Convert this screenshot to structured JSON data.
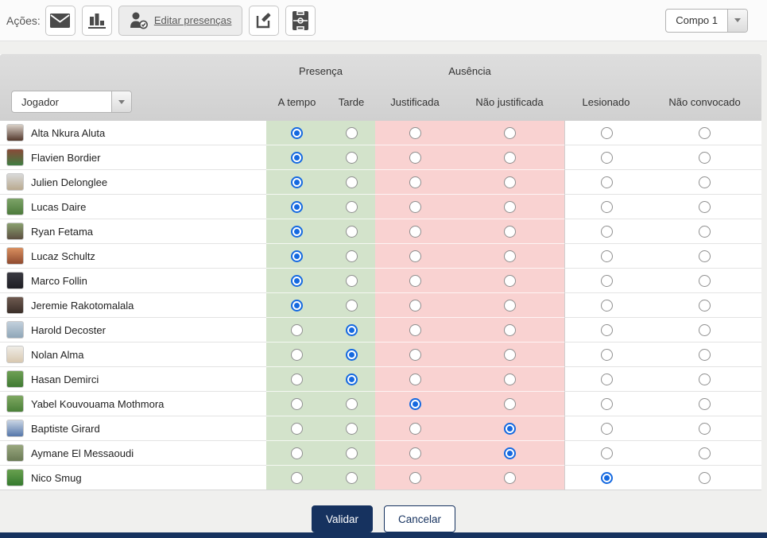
{
  "toolbar": {
    "actions_label": "Ações:",
    "edit_presences_label": "Editar presenças",
    "team_select": {
      "value": "Compo 1"
    }
  },
  "table": {
    "player_filter": {
      "value": "Jogador"
    },
    "group_headers": {
      "presence": "Presença",
      "absence": "Ausência"
    },
    "columns": [
      "A tempo",
      "Tarde",
      "Justificada",
      "Não justificada",
      "Lesionado",
      "Não convocado"
    ],
    "rows": [
      {
        "name": "Alta Nkura Aluta",
        "status": "a_tempo",
        "avatar": {
          "c1": "#d8cfc6",
          "c2": "#53382c"
        }
      },
      {
        "name": "Flavien Bordier",
        "status": "a_tempo",
        "avatar": {
          "c1": "#8a4a38",
          "c2": "#3f7d42"
        }
      },
      {
        "name": "Julien Delonglee",
        "status": "a_tempo",
        "avatar": {
          "c1": "#d9d9d9",
          "c2": "#b9a98f"
        }
      },
      {
        "name": "Lucas Daire",
        "status": "a_tempo",
        "avatar": {
          "c1": "#7da368",
          "c2": "#4c7a3b"
        }
      },
      {
        "name": "Ryan Fetama",
        "status": "a_tempo",
        "avatar": {
          "c1": "#8aa06f",
          "c2": "#5c4f41"
        }
      },
      {
        "name": "Lucaz Schultz",
        "status": "a_tempo",
        "avatar": {
          "c1": "#d98f5f",
          "c2": "#8f4a2f"
        }
      },
      {
        "name": "Marco Follin",
        "status": "a_tempo",
        "avatar": {
          "c1": "#3a3a42",
          "c2": "#1e1e24"
        }
      },
      {
        "name": "Jeremie Rakotomalala",
        "status": "a_tempo",
        "avatar": {
          "c1": "#6f5a50",
          "c2": "#3a2e28"
        }
      },
      {
        "name": "Harold Decoster",
        "status": "tarde",
        "avatar": {
          "c1": "#c2d0dc",
          "c2": "#8fa6b8"
        }
      },
      {
        "name": "Nolan Alma",
        "status": "tarde",
        "avatar": {
          "c1": "#efece6",
          "c2": "#d8c8b0"
        }
      },
      {
        "name": "Hasan Demirci",
        "status": "tarde",
        "avatar": {
          "c1": "#6fa055",
          "c2": "#3f7a33"
        }
      },
      {
        "name": "Yabel Kouvouama Mothmora",
        "status": "justificada",
        "avatar": {
          "c1": "#7fa862",
          "c2": "#4a8038"
        }
      },
      {
        "name": "Baptiste Girard",
        "status": "nao_justificada",
        "avatar": {
          "c1": "#c8d4e4",
          "c2": "#5577aa"
        }
      },
      {
        "name": "Aymane El Messaoudi",
        "status": "nao_justificada",
        "avatar": {
          "c1": "#9aa87f",
          "c2": "#6a7a55"
        }
      },
      {
        "name": "Nico Smug",
        "status": "lesionado",
        "avatar": {
          "c1": "#68a04f",
          "c2": "#357a2e"
        }
      }
    ]
  },
  "footer": {
    "validate_label": "Validar",
    "cancel_label": "Cancelar"
  },
  "colors": {
    "accent_navy": "#16325f",
    "radio_blue": "#1569e0",
    "presence_green": "#d3e3cb",
    "absence_pink": "#f9d2d1"
  }
}
